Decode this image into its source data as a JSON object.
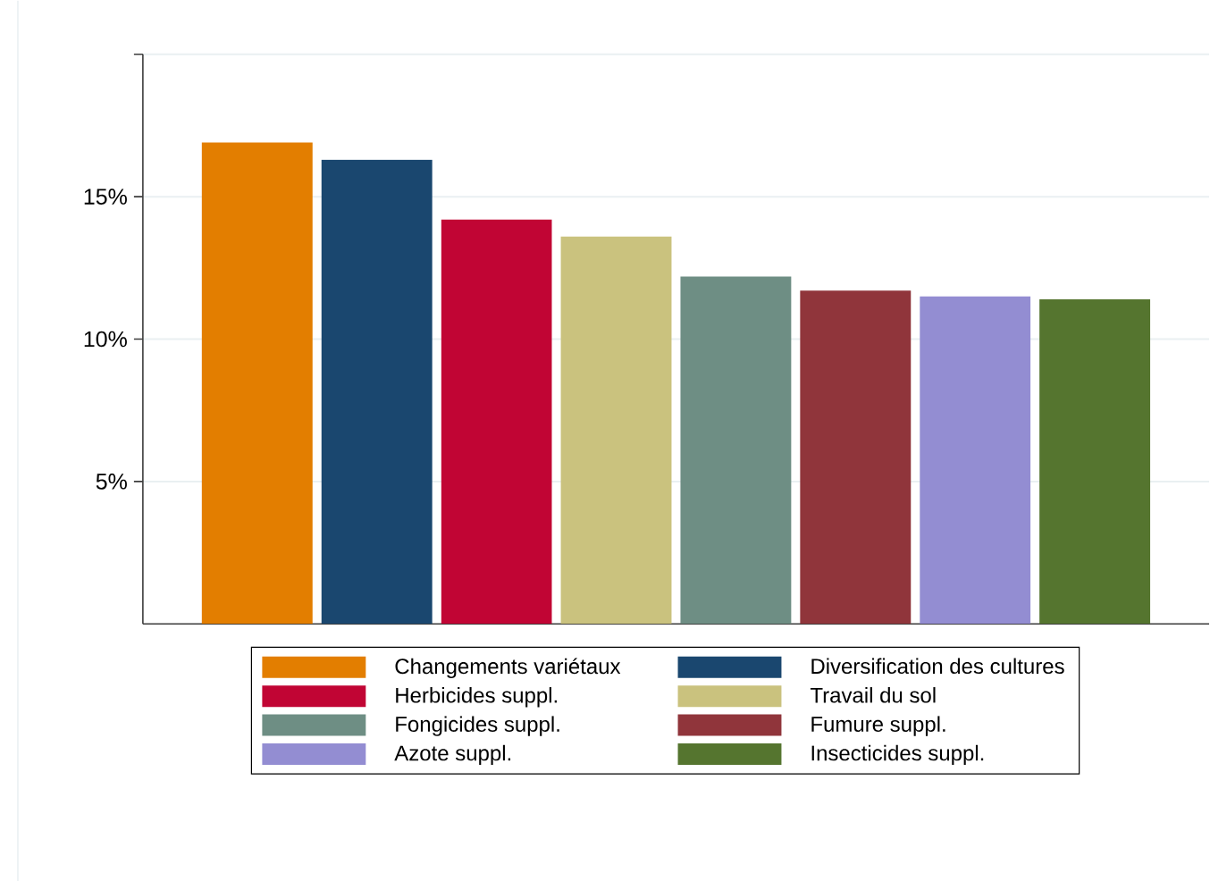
{
  "chart_data": {
    "type": "bar",
    "categories": [
      null
    ],
    "series": [
      {
        "name": "Changements variétaux",
        "color": "#e37e00",
        "values": [
          16.9
        ]
      },
      {
        "name": "Diversification des cultures",
        "color": "#1a476f",
        "values": [
          16.3
        ]
      },
      {
        "name": "Herbicides suppl.",
        "color": "#c10534",
        "values": [
          14.2
        ]
      },
      {
        "name": "Travail du sol",
        "color": "#cac27e",
        "values": [
          13.6
        ]
      },
      {
        "name": "Fongicides suppl.",
        "color": "#6e8e84",
        "values": [
          12.2
        ]
      },
      {
        "name": "Fumure suppl.",
        "color": "#90353b",
        "values": [
          11.7
        ]
      },
      {
        "name": "Azote suppl.",
        "color": "#938dd2",
        "values": [
          11.5
        ]
      },
      {
        "name": "Insecticides suppl.",
        "color": "#55752f",
        "values": [
          11.4
        ]
      }
    ],
    "ylim": [
      0,
      20
    ],
    "yticks": [
      {
        "value": 5,
        "label": "5%"
      },
      {
        "value": 10,
        "label": "10%"
      },
      {
        "value": 15,
        "label": "15%"
      },
      {
        "value": 20,
        "label": null
      }
    ],
    "grid": "y",
    "legend": "bottom"
  }
}
